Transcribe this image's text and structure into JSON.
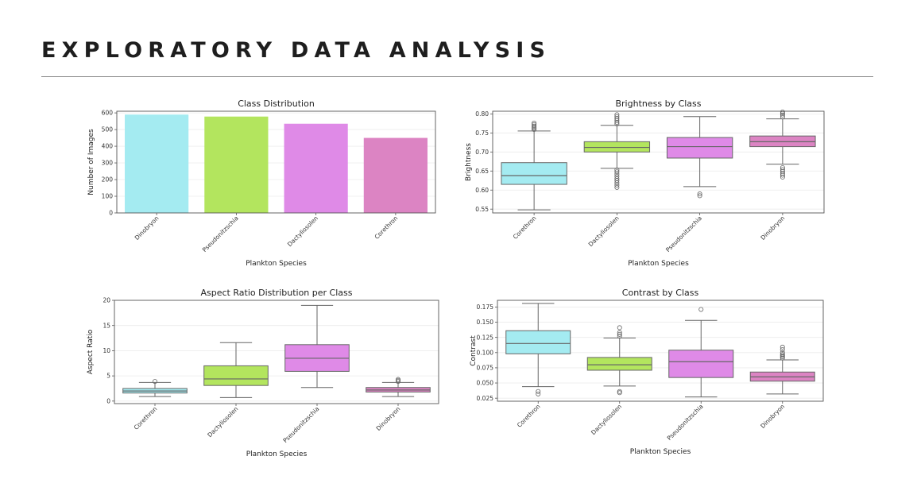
{
  "slide": {
    "title": "EXPLORATORY DATA ANALYSIS"
  },
  "colors": {
    "cyan": "#a4ebf1",
    "green": "#b3e55e",
    "violet": "#df8ae7",
    "pink": "#dc84c3",
    "grid": "#ececec",
    "axis": "#555555"
  },
  "chart_data": [
    {
      "id": "class-distribution",
      "type": "bar",
      "title": "Class Distribution",
      "xlabel": "Plankton Species",
      "ylabel": "Number of Images",
      "categories": [
        "Dinobryon",
        "Pseudonitzschia",
        "Dactyliosolen",
        "Corethron"
      ],
      "values": [
        590,
        578,
        535,
        450
      ],
      "colors": [
        "#a4ebf1",
        "#b3e55e",
        "#df8ae7",
        "#dc84c3"
      ],
      "ylim": [
        0,
        610
      ],
      "yticks": [
        0,
        100,
        200,
        300,
        400,
        500,
        600
      ],
      "ytick_labels": [
        "0",
        "100",
        "200",
        "300",
        "400",
        "500",
        "600"
      ],
      "grid": "horizontal"
    },
    {
      "id": "brightness",
      "type": "box",
      "title": "Brightness by Class",
      "xlabel": "Plankton Species",
      "ylabel": "Brightness",
      "categories": [
        "Corethron",
        "Dactyliosolen",
        "Pseudonitzschia",
        "Dinobryon"
      ],
      "colors": [
        "#a4ebf1",
        "#b3e55e",
        "#df8ae7",
        "#dc84c3"
      ],
      "ylim": [
        0.54,
        0.807
      ],
      "yticks": [
        0.55,
        0.6,
        0.65,
        0.7,
        0.75,
        0.8
      ],
      "ytick_labels": [
        "0.55",
        "0.60",
        "0.65",
        "0.70",
        "0.75",
        "0.80"
      ],
      "grid": "horizontal",
      "boxes": [
        {
          "whislo": 0.548,
          "q1": 0.615,
          "med": 0.638,
          "q3": 0.672,
          "whishi": 0.755,
          "fliers": [
            0.759,
            0.762,
            0.765,
            0.768,
            0.772,
            0.776
          ]
        },
        {
          "whislo": 0.657,
          "q1": 0.7,
          "med": 0.712,
          "q3": 0.727,
          "whishi": 0.77,
          "fliers": [
            0.607,
            0.613,
            0.619,
            0.625,
            0.63,
            0.636,
            0.642,
            0.648,
            0.653,
            0.774,
            0.778,
            0.783,
            0.788,
            0.793,
            0.798
          ]
        },
        {
          "whislo": 0.609,
          "q1": 0.684,
          "med": 0.714,
          "q3": 0.738,
          "whishi": 0.793,
          "fliers": [
            0.585,
            0.59
          ]
        },
        {
          "whislo": 0.668,
          "q1": 0.714,
          "med": 0.727,
          "q3": 0.742,
          "whishi": 0.787,
          "fliers": [
            0.634,
            0.639,
            0.644,
            0.649,
            0.654,
            0.659,
            0.792,
            0.797,
            0.801,
            0.805
          ]
        }
      ]
    },
    {
      "id": "aspect-ratio",
      "type": "box",
      "title": "Aspect Ratio Distribution per Class",
      "xlabel": "Plankton Species",
      "ylabel": "Aspect Ratio",
      "categories": [
        "Corethron",
        "Dactyliosolen",
        "Pseudonitzschia",
        "Dinobryon"
      ],
      "colors": [
        "#a4ebf1",
        "#b3e55e",
        "#df8ae7",
        "#dc84c3"
      ],
      "ylim": [
        -0.5,
        20
      ],
      "yticks": [
        0,
        5,
        10,
        15,
        20
      ],
      "ytick_labels": [
        "0",
        "5",
        "10",
        "15",
        "20"
      ],
      "grid": "horizontal",
      "boxes": [
        {
          "whislo": 0.9,
          "q1": 1.6,
          "med": 2.0,
          "q3": 2.5,
          "whishi": 3.7,
          "fliers": [
            3.9
          ]
        },
        {
          "whislo": 0.7,
          "q1": 3.1,
          "med": 4.4,
          "q3": 7.0,
          "whishi": 11.6,
          "fliers": []
        },
        {
          "whislo": 2.7,
          "q1": 5.9,
          "med": 8.5,
          "q3": 11.2,
          "whishi": 19.0,
          "fliers": []
        },
        {
          "whislo": 0.9,
          "q1": 1.8,
          "med": 2.2,
          "q3": 2.7,
          "whishi": 3.7,
          "fliers": [
            3.9,
            4.1,
            4.3
          ]
        }
      ]
    },
    {
      "id": "contrast",
      "type": "box",
      "title": "Contrast by Class",
      "xlabel": "Plankton Species",
      "ylabel": "Contrast",
      "categories": [
        "Corethron",
        "Dactyliosolen",
        "Pseudonitzschia",
        "Dinobryon"
      ],
      "colors": [
        "#a4ebf1",
        "#b3e55e",
        "#df8ae7",
        "#dc84c3"
      ],
      "ylim": [
        0.02,
        0.186
      ],
      "yticks": [
        0.025,
        0.05,
        0.075,
        0.1,
        0.125,
        0.15,
        0.175
      ],
      "ytick_labels": [
        "0.025",
        "0.050",
        "0.075",
        "0.100",
        "0.125",
        "0.150",
        "0.175"
      ],
      "grid": "horizontal",
      "boxes": [
        {
          "whislo": 0.044,
          "q1": 0.098,
          "med": 0.115,
          "q3": 0.136,
          "whishi": 0.181,
          "fliers": [
            0.032,
            0.036
          ]
        },
        {
          "whislo": 0.045,
          "q1": 0.071,
          "med": 0.08,
          "q3": 0.092,
          "whishi": 0.124,
          "fliers": [
            0.034,
            0.036,
            0.127,
            0.13,
            0.133,
            0.141
          ]
        },
        {
          "whislo": 0.027,
          "q1": 0.059,
          "med": 0.085,
          "q3": 0.104,
          "whishi": 0.153,
          "fliers": [
            0.171
          ]
        },
        {
          "whislo": 0.032,
          "q1": 0.053,
          "med": 0.06,
          "q3": 0.068,
          "whishi": 0.088,
          "fliers": [
            0.091,
            0.093,
            0.095,
            0.097,
            0.1,
            0.105,
            0.109
          ]
        }
      ]
    }
  ]
}
